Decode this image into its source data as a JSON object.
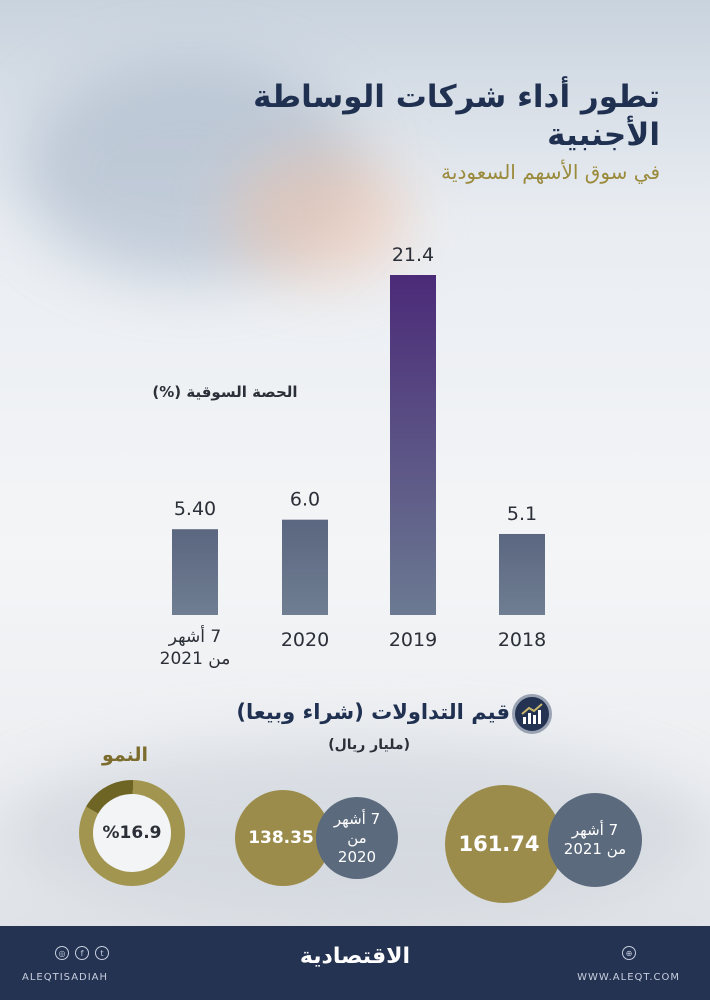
{
  "header": {
    "title": "تطور أداء شركات الوساطة الأجنبية",
    "subtitle": "في سوق الأسهم السعودية"
  },
  "chart_data": {
    "type": "bar",
    "title": "الحصة السوقية (%)",
    "categories": [
      "7 أشهر من 2021",
      "2020",
      "2019",
      "2018"
    ],
    "values": [
      5.4,
      6.0,
      21.4,
      5.1
    ],
    "value_labels": [
      "5.40",
      "6.0",
      "21.4",
      "5.1"
    ],
    "colors": {
      "bar": "#5f6b82",
      "highlight": "#4b2f78"
    }
  },
  "trading": {
    "title": "قيم التداولات (شراء وبيعا)",
    "unit": "(مليار ريال)",
    "period_2021": "7 أشهر من 2021",
    "value_2021": "161.74",
    "period_2020": "7 أشهر من 2020",
    "value_2020": "138.35"
  },
  "growth": {
    "title": "النمو",
    "value": "%16.9",
    "fraction": 0.169
  },
  "footer": {
    "logo": "الاقتصادية",
    "social_handle": "ALEQTISADIAH",
    "website": "WWW.ALEQT.COM",
    "icons": [
      "instagram-icon",
      "facebook-icon",
      "twitter-icon",
      "globe-icon"
    ]
  }
}
